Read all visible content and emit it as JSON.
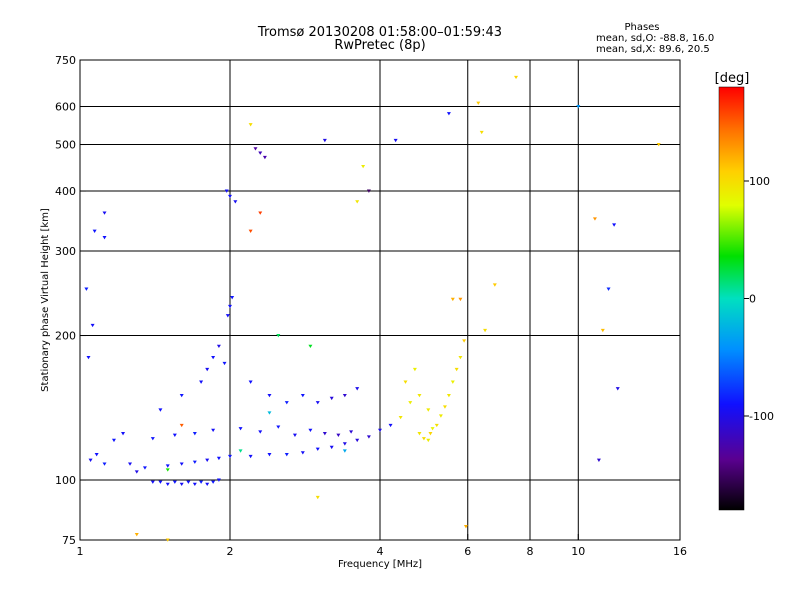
{
  "header": {
    "title_line1": "Tromsø 20130208 01:58:00–01:59:43",
    "title_line2": "RwPretec (8p)",
    "stats_heading": "Phases",
    "stats_o": "mean, sd,O: -88.8, 16.0",
    "stats_x": "mean, sd,X:  89.6, 20.5"
  },
  "chart_data": {
    "type": "scatter",
    "title": "Tromsø 20130208 01:58:00–01:59:43",
    "subtitle": "RwPretec (8p)",
    "xlabel": "Frequency [MHz]",
    "ylabel": "Stationary phase Virtual Height [km]",
    "xscale": "log",
    "yscale": "log",
    "xlim": [
      1,
      16
    ],
    "ylim": [
      75,
      750
    ],
    "xticks": [
      1,
      2,
      4,
      6,
      8,
      10,
      16
    ],
    "xtick_labels": [
      "1",
      "2",
      "4",
      "6",
      "8",
      "10",
      "16"
    ],
    "xgrid": [
      2,
      4,
      6,
      8,
      10
    ],
    "yticks": [
      75,
      100,
      200,
      300,
      400,
      500,
      600,
      750
    ],
    "ytick_labels": [
      "75",
      "100",
      "200",
      "300",
      "400",
      "500",
      "600",
      "750"
    ],
    "ygrid": [
      100,
      200,
      300,
      400,
      500,
      600
    ],
    "grid": true,
    "colorbar": {
      "label": "[deg]",
      "min": -180,
      "max": 180,
      "ticks": [
        -100,
        0,
        100
      ],
      "tick_labels": [
        "-100",
        "0",
        "100"
      ],
      "colormap": "rainbow (black-purple-blue-cyan-green-yellow-red)"
    },
    "series": [
      {
        "values": [
          {
            "x": 1.05,
            "y": 110,
            "p": -95
          },
          {
            "x": 1.08,
            "y": 113,
            "p": -90
          },
          {
            "x": 1.12,
            "y": 108,
            "p": -85
          },
          {
            "x": 1.17,
            "y": 121,
            "p": -88
          },
          {
            "x": 1.22,
            "y": 125,
            "p": -92
          },
          {
            "x": 1.26,
            "y": 108,
            "p": -95
          },
          {
            "x": 1.3,
            "y": 104,
            "p": -100
          },
          {
            "x": 1.35,
            "y": 106,
            "p": -88
          },
          {
            "x": 1.4,
            "y": 99,
            "p": -93
          },
          {
            "x": 1.45,
            "y": 99,
            "p": -90
          },
          {
            "x": 1.5,
            "y": 98,
            "p": -92
          },
          {
            "x": 1.55,
            "y": 99,
            "p": -88
          },
          {
            "x": 1.6,
            "y": 98,
            "p": -95
          },
          {
            "x": 1.65,
            "y": 99,
            "p": -90
          },
          {
            "x": 1.7,
            "y": 98,
            "p": -92
          },
          {
            "x": 1.75,
            "y": 99,
            "p": -85
          },
          {
            "x": 1.8,
            "y": 98,
            "p": -93
          },
          {
            "x": 1.85,
            "y": 99,
            "p": -88
          },
          {
            "x": 1.9,
            "y": 100,
            "p": -90
          },
          {
            "x": 1.5,
            "y": 107,
            "p": -88
          },
          {
            "x": 1.6,
            "y": 108,
            "p": -92
          },
          {
            "x": 1.7,
            "y": 109,
            "p": -86
          },
          {
            "x": 1.8,
            "y": 110,
            "p": -95
          },
          {
            "x": 1.9,
            "y": 111,
            "p": -90
          },
          {
            "x": 2.0,
            "y": 112,
            "p": -88
          },
          {
            "x": 2.2,
            "y": 112,
            "p": -92
          },
          {
            "x": 2.4,
            "y": 113,
            "p": -90
          },
          {
            "x": 2.6,
            "y": 113,
            "p": -85
          },
          {
            "x": 2.8,
            "y": 114,
            "p": -93
          },
          {
            "x": 3.0,
            "y": 116,
            "p": -90
          },
          {
            "x": 3.2,
            "y": 117,
            "p": -95
          },
          {
            "x": 3.4,
            "y": 119,
            "p": -100
          },
          {
            "x": 3.6,
            "y": 121,
            "p": -105
          },
          {
            "x": 3.8,
            "y": 123,
            "p": -110
          },
          {
            "x": 4.0,
            "y": 127,
            "p": -98
          },
          {
            "x": 4.2,
            "y": 130,
            "p": -92
          },
          {
            "x": 1.4,
            "y": 122,
            "p": -88
          },
          {
            "x": 1.55,
            "y": 124,
            "p": -90
          },
          {
            "x": 1.7,
            "y": 125,
            "p": -85
          },
          {
            "x": 1.85,
            "y": 127,
            "p": -93
          },
          {
            "x": 2.1,
            "y": 128,
            "p": -90
          },
          {
            "x": 2.3,
            "y": 126,
            "p": -92
          },
          {
            "x": 2.5,
            "y": 129,
            "p": -88
          },
          {
            "x": 2.7,
            "y": 124,
            "p": -95
          },
          {
            "x": 2.9,
            "y": 127,
            "p": -90
          },
          {
            "x": 3.1,
            "y": 125,
            "p": -110
          },
          {
            "x": 3.3,
            "y": 124,
            "p": -115
          },
          {
            "x": 3.5,
            "y": 126,
            "p": -108
          },
          {
            "x": 1.45,
            "y": 140,
            "p": -90
          },
          {
            "x": 1.6,
            "y": 150,
            "p": -88
          },
          {
            "x": 1.75,
            "y": 160,
            "p": -92
          },
          {
            "x": 1.8,
            "y": 170,
            "p": -95
          },
          {
            "x": 1.85,
            "y": 180,
            "p": -90
          },
          {
            "x": 1.9,
            "y": 190,
            "p": -100
          },
          {
            "x": 1.95,
            "y": 175,
            "p": -88
          },
          {
            "x": 2.2,
            "y": 160,
            "p": -90
          },
          {
            "x": 2.4,
            "y": 150,
            "p": -92
          },
          {
            "x": 2.6,
            "y": 145,
            "p": -85
          },
          {
            "x": 2.8,
            "y": 150,
            "p": -88
          },
          {
            "x": 3.0,
            "y": 145,
            "p": -95
          },
          {
            "x": 3.2,
            "y": 148,
            "p": -105
          },
          {
            "x": 3.4,
            "y": 150,
            "p": -110
          },
          {
            "x": 3.6,
            "y": 155,
            "p": -98
          },
          {
            "x": 1.97,
            "y": 400,
            "p": -92
          },
          {
            "x": 2.0,
            "y": 390,
            "p": -90
          },
          {
            "x": 2.05,
            "y": 380,
            "p": -95
          },
          {
            "x": 2.0,
            "y": 230,
            "p": -90
          },
          {
            "x": 2.02,
            "y": 240,
            "p": -88
          },
          {
            "x": 1.98,
            "y": 220,
            "p": -92
          },
          {
            "x": 2.3,
            "y": 480,
            "p": -120
          },
          {
            "x": 2.35,
            "y": 470,
            "p": -125
          },
          {
            "x": 2.25,
            "y": 490,
            "p": -130
          },
          {
            "x": 1.12,
            "y": 360,
            "p": -95
          },
          {
            "x": 1.12,
            "y": 320,
            "p": -90
          },
          {
            "x": 1.07,
            "y": 330,
            "p": -88
          },
          {
            "x": 1.06,
            "y": 210,
            "p": -92
          },
          {
            "x": 1.04,
            "y": 180,
            "p": -90
          },
          {
            "x": 1.03,
            "y": 250,
            "p": -85
          },
          {
            "x": 3.1,
            "y": 510,
            "p": -100
          },
          {
            "x": 3.8,
            "y": 400,
            "p": -150
          },
          {
            "x": 4.3,
            "y": 510,
            "p": -95
          },
          {
            "x": 5.5,
            "y": 580,
            "p": -90
          },
          {
            "x": 10.0,
            "y": 600,
            "p": -40
          },
          {
            "x": 11.5,
            "y": 250,
            "p": -80
          },
          {
            "x": 11.8,
            "y": 340,
            "p": -90
          },
          {
            "x": 12.0,
            "y": 155,
            "p": -100
          },
          {
            "x": 11.0,
            "y": 110,
            "p": -110
          },
          {
            "x": 4.8,
            "y": 125,
            "p": 95
          },
          {
            "x": 4.9,
            "y": 122,
            "p": 100
          },
          {
            "x": 5.0,
            "y": 121,
            "p": 90
          },
          {
            "x": 5.05,
            "y": 125,
            "p": 105
          },
          {
            "x": 5.1,
            "y": 128,
            "p": 85
          },
          {
            "x": 5.2,
            "y": 130,
            "p": 98
          },
          {
            "x": 5.3,
            "y": 136,
            "p": 92
          },
          {
            "x": 5.4,
            "y": 142,
            "p": 100
          },
          {
            "x": 5.5,
            "y": 150,
            "p": 95
          },
          {
            "x": 5.6,
            "y": 160,
            "p": 88
          },
          {
            "x": 5.7,
            "y": 170,
            "p": 100
          },
          {
            "x": 5.8,
            "y": 180,
            "p": 95
          },
          {
            "x": 4.6,
            "y": 145,
            "p": 90
          },
          {
            "x": 4.8,
            "y": 150,
            "p": 95
          },
          {
            "x": 4.5,
            "y": 160,
            "p": 100
          },
          {
            "x": 4.7,
            "y": 170,
            "p": 88
          },
          {
            "x": 5.0,
            "y": 140,
            "p": 92
          },
          {
            "x": 4.4,
            "y": 135,
            "p": 95
          },
          {
            "x": 5.9,
            "y": 195,
            "p": 110
          },
          {
            "x": 5.6,
            "y": 238,
            "p": 120
          },
          {
            "x": 5.8,
            "y": 238,
            "p": 130
          },
          {
            "x": 6.3,
            "y": 610,
            "p": 110
          },
          {
            "x": 6.4,
            "y": 530,
            "p": 100
          },
          {
            "x": 7.5,
            "y": 690,
            "p": 105
          },
          {
            "x": 14.5,
            "y": 500,
            "p": 110
          },
          {
            "x": 10.8,
            "y": 350,
            "p": 130
          },
          {
            "x": 11.2,
            "y": 205,
            "p": 115
          },
          {
            "x": 5.95,
            "y": 80,
            "p": 120
          },
          {
            "x": 6.5,
            "y": 205,
            "p": 100
          },
          {
            "x": 6.8,
            "y": 255,
            "p": 110
          },
          {
            "x": 2.2,
            "y": 550,
            "p": 100
          },
          {
            "x": 3.6,
            "y": 380,
            "p": 95
          },
          {
            "x": 3.7,
            "y": 450,
            "p": 90
          },
          {
            "x": 2.5,
            "y": 200,
            "p": 20
          },
          {
            "x": 2.9,
            "y": 190,
            "p": 30
          },
          {
            "x": 1.5,
            "y": 105,
            "p": 40
          },
          {
            "x": 2.4,
            "y": 138,
            "p": -20
          },
          {
            "x": 2.1,
            "y": 115,
            "p": 10
          },
          {
            "x": 3.4,
            "y": 115,
            "p": -30
          },
          {
            "x": 1.6,
            "y": 130,
            "p": 150
          },
          {
            "x": 2.2,
            "y": 330,
            "p": 155
          },
          {
            "x": 2.3,
            "y": 360,
            "p": 160
          },
          {
            "x": 1.3,
            "y": 77,
            "p": 120
          },
          {
            "x": 1.5,
            "y": 75,
            "p": 110
          },
          {
            "x": 3.0,
            "y": 92,
            "p": 100
          }
        ]
      }
    ]
  }
}
